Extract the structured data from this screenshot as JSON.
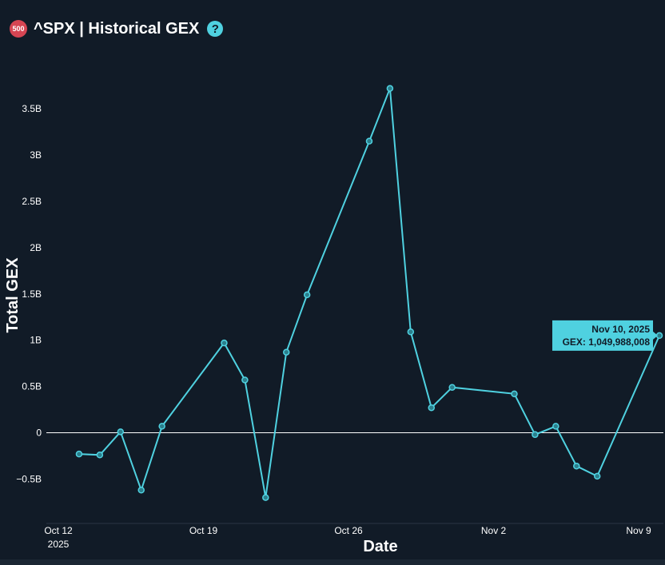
{
  "header": {
    "badge": "500",
    "title": "^SPX | Historical GEX",
    "help": "?"
  },
  "colors": {
    "background": "#111b27",
    "line": "#4fd1e0",
    "badge": "#d64553",
    "zero_line": "#ffffff"
  },
  "chart_data": {
    "type": "line",
    "title": "^SPX | Historical GEX",
    "xlabel": "Date",
    "ylabel": "Total GEX",
    "x_ticks": [
      {
        "date": "2025-10-12",
        "label": "Oct 12",
        "sublabel": "2025"
      },
      {
        "date": "2025-10-19",
        "label": "Oct 19"
      },
      {
        "date": "2025-10-26",
        "label": "Oct 26"
      },
      {
        "date": "2025-11-02",
        "label": "Nov 2"
      },
      {
        "date": "2025-11-09",
        "label": "Nov 9"
      }
    ],
    "y_ticks": [
      {
        "value": -0.5,
        "label": "−0.5B"
      },
      {
        "value": 0,
        "label": "0"
      },
      {
        "value": 0.5,
        "label": "0.5B"
      },
      {
        "value": 1,
        "label": "1B"
      },
      {
        "value": 1.5,
        "label": "1.5B"
      },
      {
        "value": 2,
        "label": "2B"
      },
      {
        "value": 2.5,
        "label": "2.5B"
      },
      {
        "value": 3,
        "label": "3B"
      },
      {
        "value": 3.5,
        "label": "3.5B"
      }
    ],
    "xlim": [
      "2025-10-12",
      "2025-11-10"
    ],
    "ylim": [
      -0.98,
      3.95
    ],
    "grid": false,
    "series": [
      {
        "x": [
          "2025-10-13",
          "2025-10-14",
          "2025-10-15",
          "2025-10-16",
          "2025-10-17",
          "2025-10-20",
          "2025-10-21",
          "2025-10-22",
          "2025-10-23",
          "2025-10-24",
          "2025-10-27",
          "2025-10-28",
          "2025-10-29",
          "2025-10-30",
          "2025-10-31",
          "2025-11-03",
          "2025-11-04",
          "2025-11-05",
          "2025-11-06",
          "2025-11-07",
          "2025-11-10"
        ],
        "y": [
          -0.23,
          -0.24,
          0.01,
          -0.62,
          0.07,
          0.97,
          0.57,
          -0.7,
          0.87,
          1.49,
          3.15,
          3.72,
          1.09,
          0.27,
          0.49,
          0.42,
          -0.02,
          0.07,
          -0.36,
          -0.47,
          1.05
        ]
      }
    ],
    "tooltip": {
      "date_label": "Nov 10, 2025",
      "value_label": "GEX: 1,049,988,008"
    }
  }
}
